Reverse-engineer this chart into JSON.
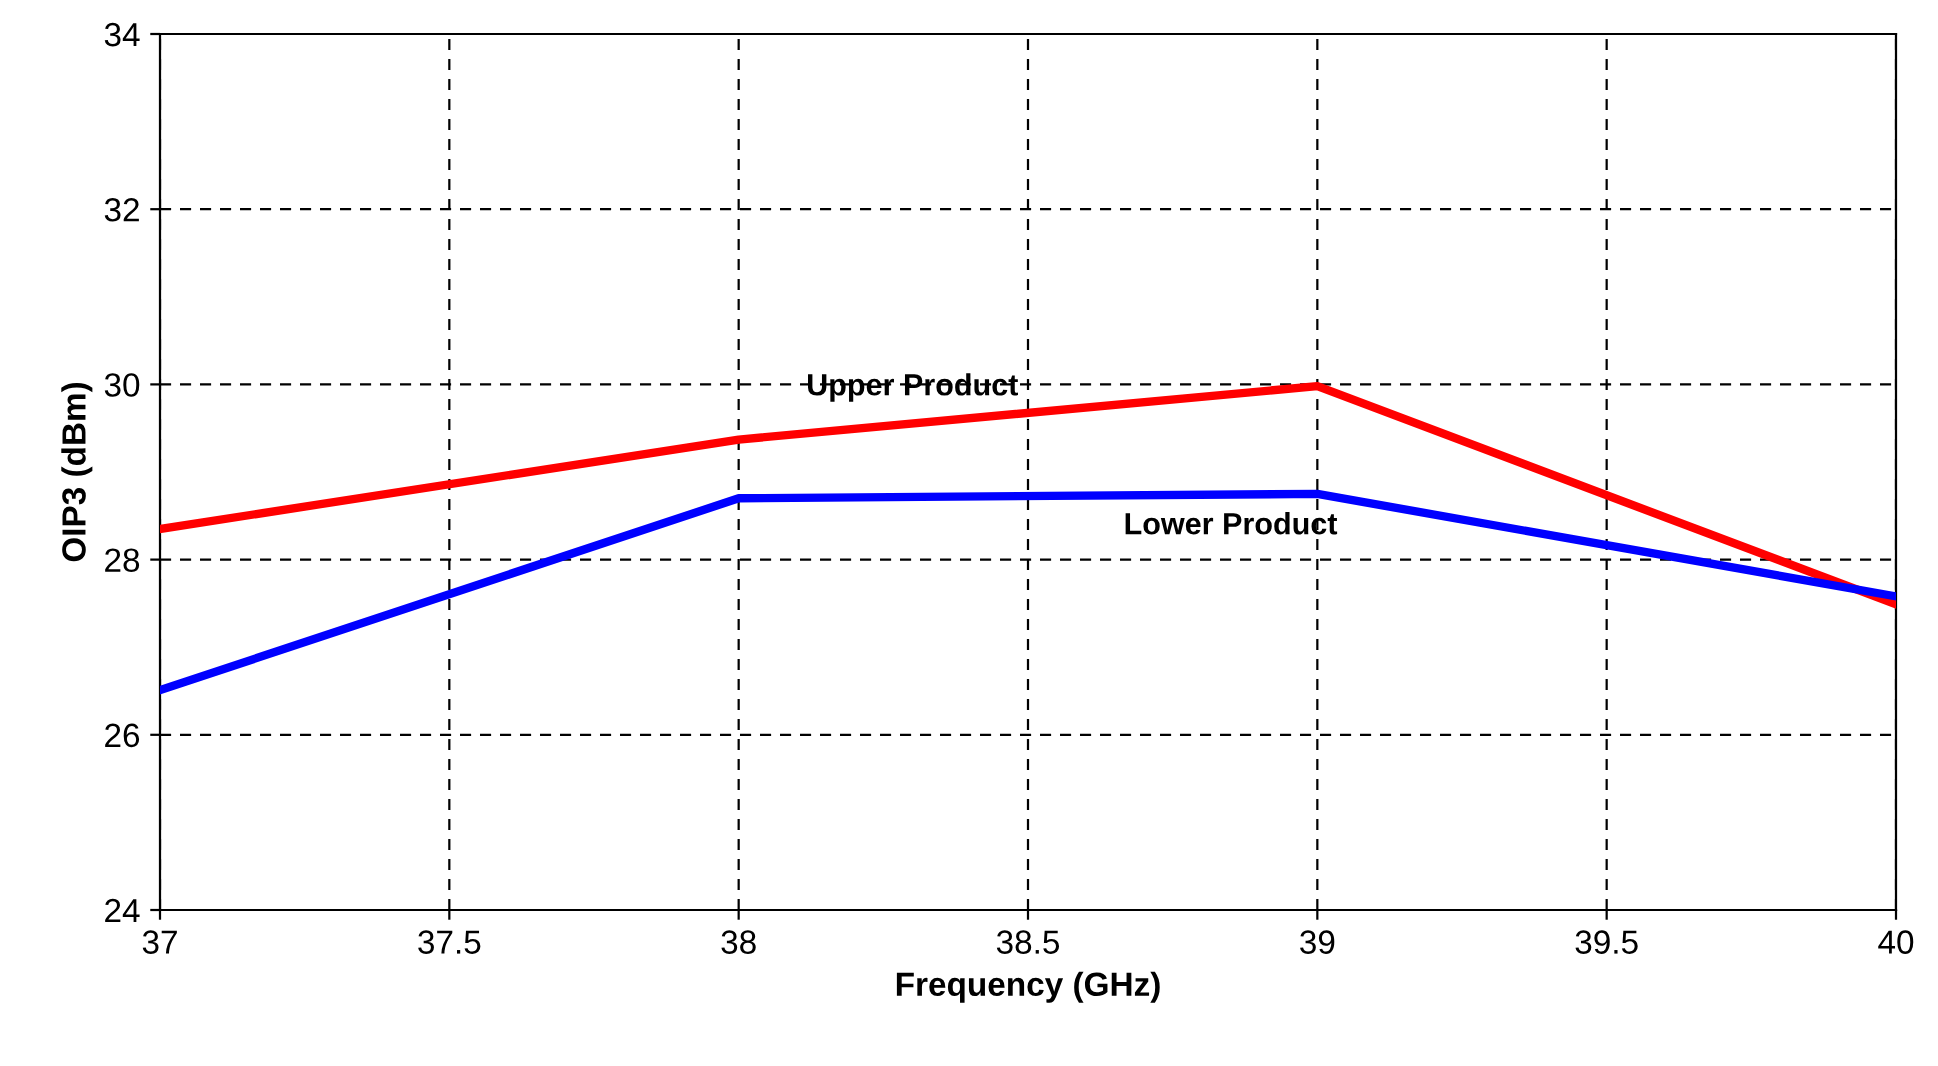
{
  "chart_data": {
    "type": "line",
    "xlabel": "Frequency (GHz)",
    "ylabel": "OIP3 (dBm)",
    "x": [
      37,
      38,
      39,
      40
    ],
    "series": [
      {
        "name": "Upper Product",
        "color": "#ff0000",
        "values": [
          28.35,
          29.37,
          29.98,
          27.49
        ]
      },
      {
        "name": "Lower Product",
        "color": "#0000ff",
        "values": [
          26.51,
          28.7,
          28.75,
          27.58
        ]
      }
    ],
    "xlim": [
      37,
      40
    ],
    "xticks": [
      37,
      37.5,
      38,
      38.5,
      39,
      39.5,
      40
    ],
    "ylim": [
      24,
      34
    ],
    "yticks": [
      24,
      26,
      28,
      30,
      32,
      34
    ],
    "grid": true,
    "line_style": "solid",
    "marker": "none"
  }
}
